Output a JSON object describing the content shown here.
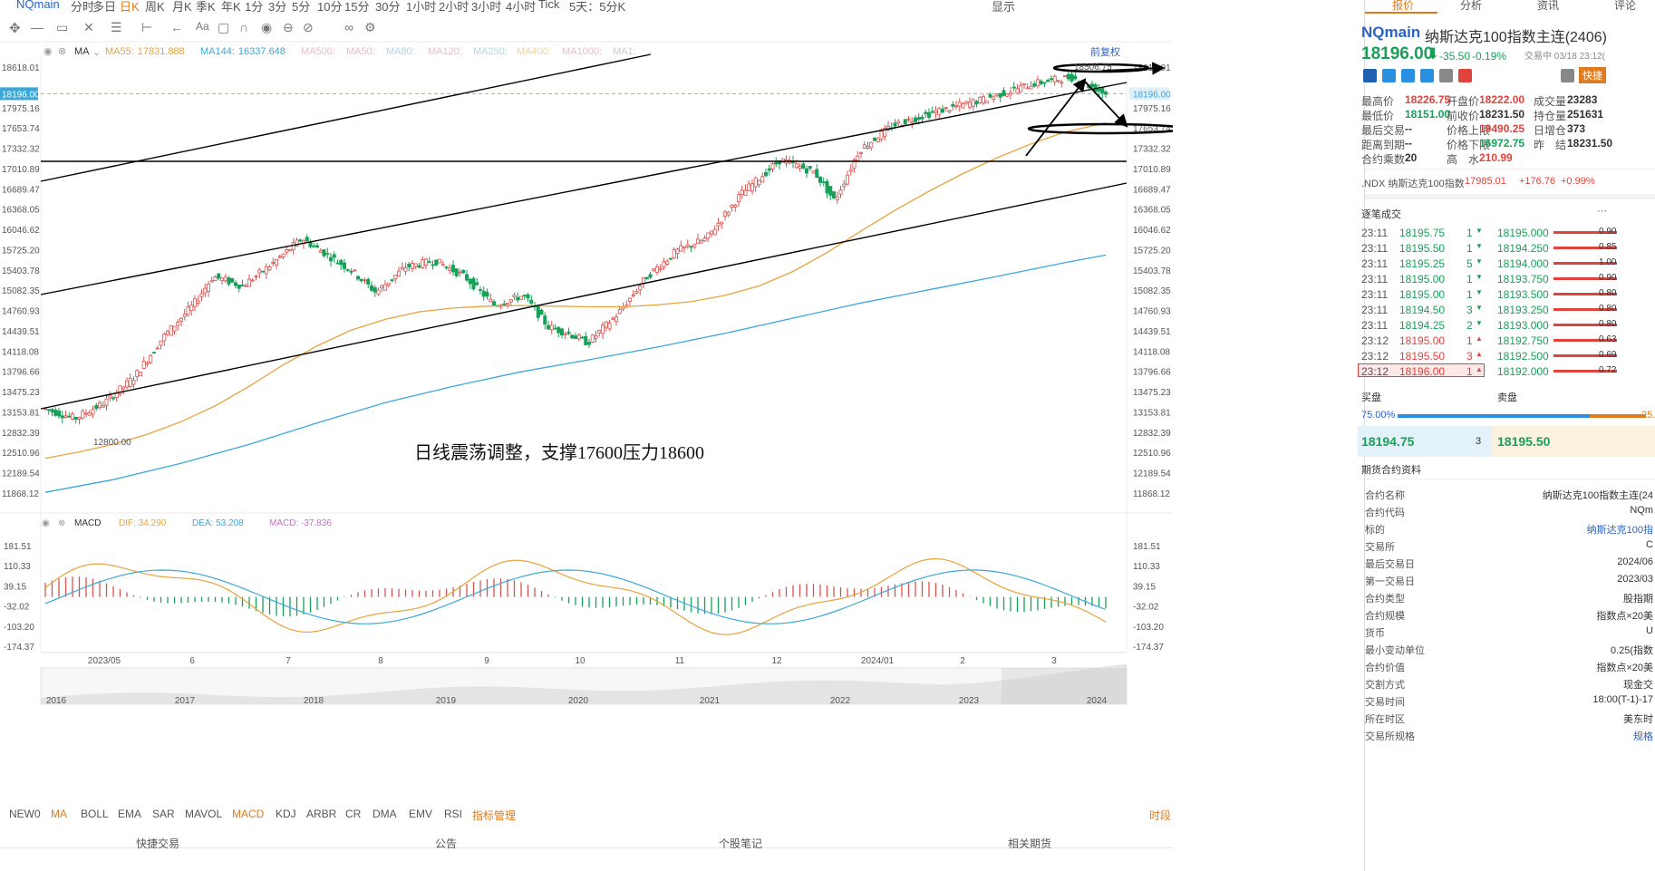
{
  "topbar": {
    "symbol": "NQmain",
    "periods": [
      "分时",
      "多日",
      "日K",
      "周K",
      "月K",
      "季K",
      "年K",
      "1分",
      "3分",
      "5分",
      "10分",
      "15分",
      "30分",
      "1小时",
      "2小时",
      "3小时",
      "4小时",
      "Tick",
      "5天：5分K"
    ],
    "active_period": "日K",
    "display_label": "显示"
  },
  "ma_legend": {
    "label": "MA",
    "items": [
      {
        "name": "MA55:",
        "value": "17831.888",
        "color": "#e8a33c"
      },
      {
        "name": "MA144:",
        "value": "16337.648",
        "color": "#3aa8d8"
      },
      {
        "name": "MA500:",
        "value": "",
        "color": "#f3b7c3"
      },
      {
        "name": "MA50:",
        "value": "",
        "color": "#f3b7c3"
      },
      {
        "name": "MA80:",
        "value": "",
        "color": "#a9d7ee"
      },
      {
        "name": "MA120:",
        "value": "",
        "color": "#f3b7c3"
      },
      {
        "name": "MA250:",
        "value": "",
        "color": "#a9d7ee"
      },
      {
        "name": "MA400:",
        "value": "",
        "color": "#f6d38c"
      },
      {
        "name": "MA1000:",
        "value": "",
        "color": "#f3b7c3"
      },
      {
        "name": "MA1:",
        "value": "",
        "color": "#cccccc"
      }
    ],
    "fuquan_label": "前复权"
  },
  "chart_data": {
    "type": "candlestick",
    "ylim": [
      11868.12,
      18618.01
    ],
    "price_ticks": [
      "18618.01",
      "17975.16",
      "17653.74",
      "17332.32",
      "17010.89",
      "16689.47",
      "16368.05",
      "16046.62",
      "15725.20",
      "15403.78",
      "15082.35",
      "14760.93",
      "14439.51",
      "14118.08",
      "13796.66",
      "13475.23",
      "13153.81",
      "12832.39",
      "12510.96",
      "12189.54",
      "11868.12"
    ],
    "current_price_label": "18196.00",
    "x_labels": [
      "2023/05",
      "6",
      "7",
      "8",
      "9",
      "10",
      "11",
      "12",
      "2024/01",
      "2",
      "3"
    ],
    "annotations": {
      "high_label": "18506.75",
      "low_label": "12800.00",
      "comment": "日线震荡调整，支撑17600压力18600"
    },
    "series": [
      {
        "name": "MA55",
        "color": "#e8a33c",
        "points": [
          [
            0,
            12420
          ],
          [
            10,
            12520
          ],
          [
            20,
            12640
          ],
          [
            30,
            12800
          ],
          [
            40,
            13000
          ],
          [
            50,
            13250
          ],
          [
            60,
            13560
          ],
          [
            70,
            13900
          ],
          [
            80,
            14200
          ],
          [
            90,
            14450
          ],
          [
            100,
            14620
          ],
          [
            110,
            14740
          ],
          [
            120,
            14800
          ],
          [
            130,
            14830
          ],
          [
            140,
            14840
          ],
          [
            150,
            14830
          ],
          [
            160,
            14820
          ],
          [
            170,
            14820
          ],
          [
            180,
            14850
          ],
          [
            190,
            14900
          ],
          [
            200,
            15000
          ],
          [
            210,
            15150
          ],
          [
            220,
            15380
          ],
          [
            230,
            15680
          ],
          [
            240,
            16020
          ],
          [
            250,
            16350
          ],
          [
            260,
            16650
          ],
          [
            270,
            16930
          ],
          [
            280,
            17180
          ],
          [
            290,
            17400
          ],
          [
            300,
            17590
          ],
          [
            312,
            17730
          ]
        ]
      },
      {
        "name": "MA144",
        "color": "#3aa8d8",
        "points": [
          [
            0,
            11880
          ],
          [
            20,
            12080
          ],
          [
            40,
            12340
          ],
          [
            60,
            12640
          ],
          [
            80,
            12980
          ],
          [
            100,
            13300
          ],
          [
            120,
            13560
          ],
          [
            140,
            13790
          ],
          [
            160,
            13980
          ],
          [
            180,
            14180
          ],
          [
            200,
            14400
          ],
          [
            220,
            14640
          ],
          [
            240,
            14880
          ],
          [
            260,
            15090
          ],
          [
            280,
            15300
          ],
          [
            300,
            15520
          ],
          [
            312,
            15640
          ]
        ]
      }
    ],
    "candles_desc": "daily OHLC May 2023 – Mar 2024",
    "macd": {
      "label": "MACD",
      "dif_label": "DIF:",
      "dif_value": "34.290",
      "dea_label": "DEA:",
      "dea_value": "53.208",
      "macd_label": "MACD:",
      "macd_value": "-37.836",
      "ylim": [
        -174.37,
        181.51
      ],
      "ticks": [
        "181.51",
        "110.33",
        "39.15",
        "-32.02",
        "-103.20",
        "-174.37"
      ]
    },
    "overview_years": [
      "2016",
      "2017",
      "2018",
      "2019",
      "2020",
      "2021",
      "2022",
      "2023",
      "2024"
    ]
  },
  "indicator_tabs": [
    "NEW0",
    "MA",
    "BOLL",
    "EMA",
    "SAR",
    "MAVOL",
    "MACD",
    "KDJ",
    "ARBR",
    "CR",
    "DMA",
    "EMV",
    "RSI",
    "指标管理"
  ],
  "indicator_right": "时段",
  "bottom_tabs": [
    "快捷交易",
    "公告",
    "个股笔记",
    "相关期货"
  ],
  "right_panel": {
    "tabs": [
      "报价",
      "分析",
      "资讯",
      "评论"
    ],
    "symbol": "NQmain",
    "name": "纳斯达克100指数主连(2406)",
    "price": "18196.00",
    "change": "-35.50",
    "change_pct": "-0.19%",
    "trade_status": "交易中 03/18 23:12(",
    "quick_label": "快捷",
    "stats": [
      [
        "最高价",
        "18226.75",
        "开盘价",
        "18222.00",
        "成交量",
        "23283"
      ],
      [
        "最低价",
        "18151.00",
        "前收价",
        "18231.50",
        "持仓量",
        "251631"
      ],
      [
        "最后交易",
        "--",
        "价格上限",
        "19490.25",
        "日增仓",
        "373"
      ],
      [
        "距离到期",
        "--",
        "价格下限",
        "16972.75",
        "昨　结",
        "18231.50"
      ],
      [
        "合约乘数",
        "20",
        "高　水",
        "210.99",
        "",
        ""
      ]
    ],
    "index_name": ".NDX 纳斯达克100指数",
    "index_price": "17985.01",
    "index_change": "+176.76",
    "index_pct": "+0.99%",
    "ticks_title": "逐笔成交",
    "ticks": [
      [
        "23:11",
        "18195.75",
        "1",
        "down"
      ],
      [
        "23:11",
        "18195.50",
        "1",
        "down"
      ],
      [
        "23:11",
        "18195.25",
        "5",
        "down"
      ],
      [
        "23:11",
        "18195.00",
        "1",
        "down"
      ],
      [
        "23:11",
        "18195.00",
        "1",
        "down"
      ],
      [
        "23:11",
        "18194.50",
        "3",
        "down"
      ],
      [
        "23:11",
        "18194.25",
        "2",
        "down"
      ],
      [
        "23:12",
        "18195.00",
        "1",
        "up"
      ],
      [
        "23:12",
        "18195.50",
        "3",
        "up"
      ],
      [
        "23:12",
        "18196.00",
        "1",
        "up"
      ]
    ],
    "depth": [
      [
        "18195.000",
        "0.90"
      ],
      [
        "18194.250",
        "0.85"
      ],
      [
        "18194.000",
        "1.00"
      ],
      [
        "18193.750",
        "0.90"
      ],
      [
        "18193.500",
        "0.80"
      ],
      [
        "18193.250",
        "0.80"
      ],
      [
        "18193.000",
        "0.80"
      ],
      [
        "18192.750",
        "0.63"
      ],
      [
        "18192.500",
        "0.69"
      ],
      [
        "18192.000",
        "0.72"
      ]
    ],
    "buy_label": "买盘",
    "sell_label": "卖盘",
    "buy_pct": "75.00%",
    "sell_pct": "25.",
    "bid_price": "18194.75",
    "bid_size": "3",
    "ask_price": "18195.50",
    "contract_title": "期货合约资料",
    "contract": [
      [
        "合约名称",
        "纳斯达克100指数主连(24"
      ],
      [
        "合约代码",
        "NQm"
      ],
      [
        "标的",
        "纳斯达克100指"
      ],
      [
        "交易所",
        "C"
      ],
      [
        "最后交易日",
        "2024/06"
      ],
      [
        "第一交易日",
        "2023/03"
      ],
      [
        "合约类型",
        "股指期"
      ],
      [
        "合约规模",
        "指数点×20美"
      ],
      [
        "货币",
        "U"
      ],
      [
        "最小变动单位",
        "0.25(指数"
      ],
      [
        "合约价值",
        "指数点×20美"
      ],
      [
        "交割方式",
        "现金交"
      ],
      [
        "交易时间",
        "18:00(T-1)-17"
      ],
      [
        "所在时区",
        "美东时"
      ],
      [
        "交易所规格",
        "规格"
      ]
    ]
  }
}
